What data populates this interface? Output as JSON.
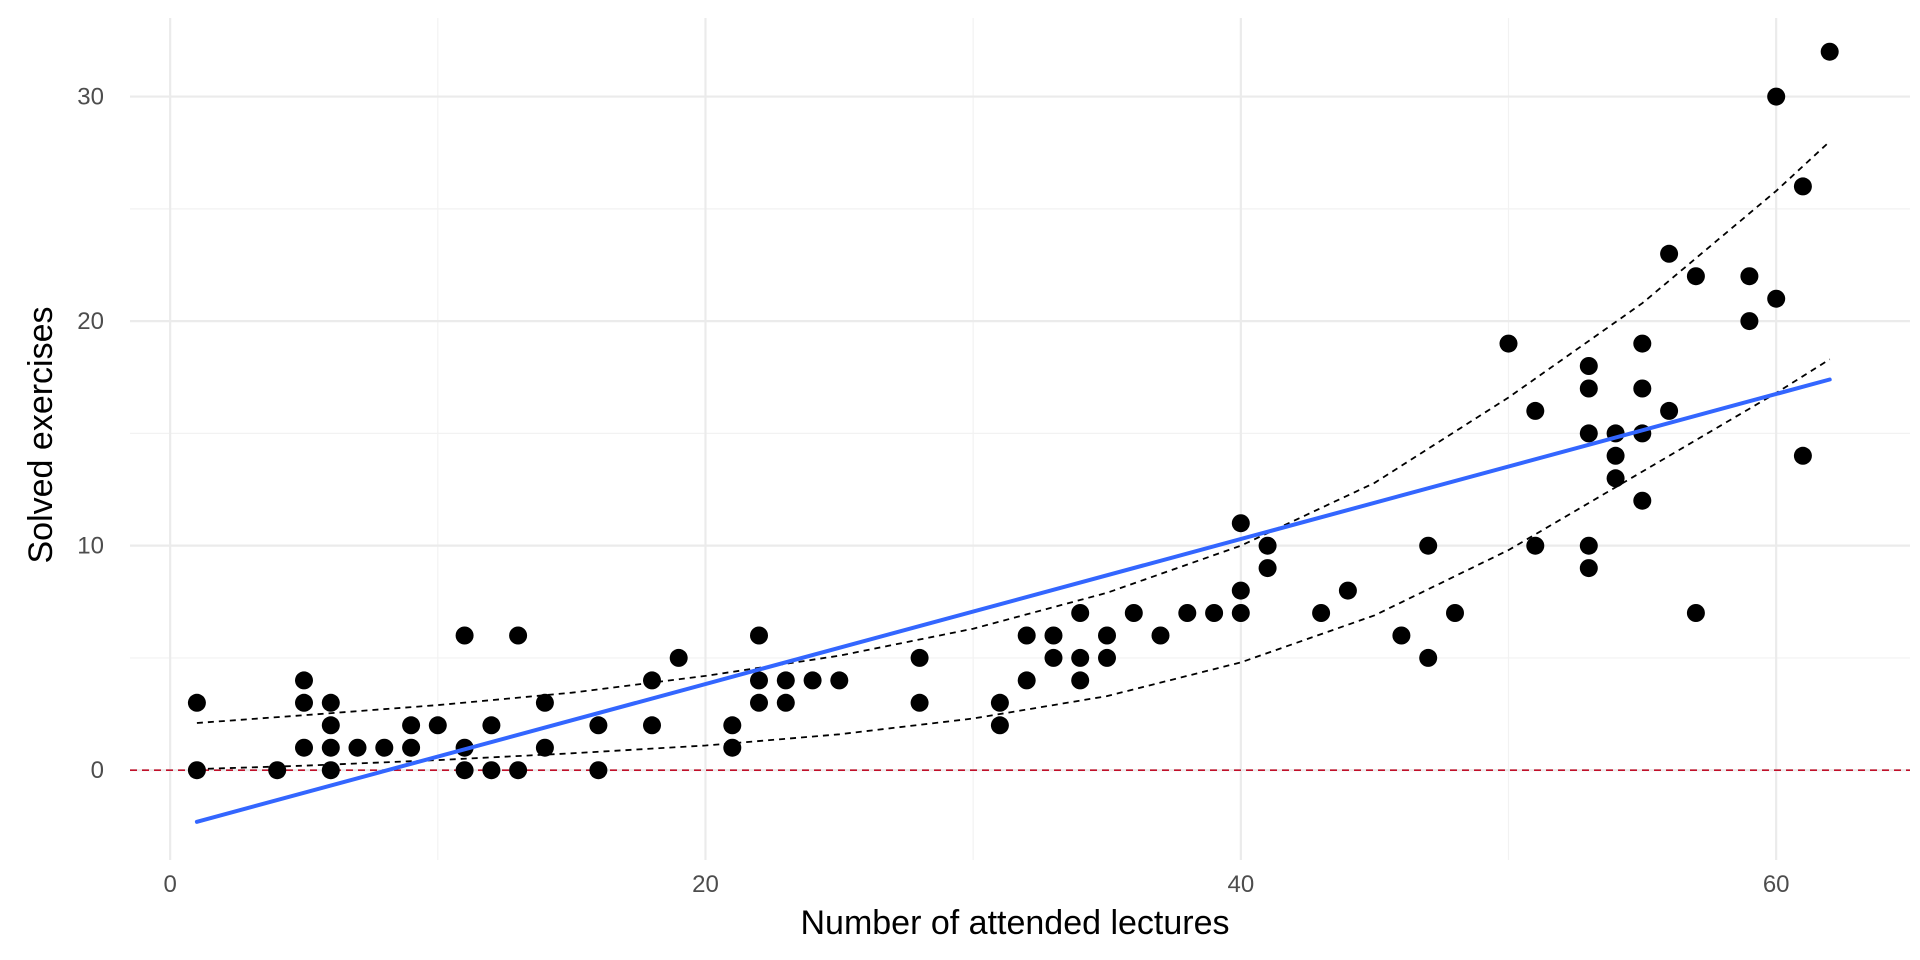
{
  "chart_data": {
    "type": "scatter",
    "title": "",
    "xlabel": "Number of attended lectures",
    "ylabel": "Solved exercises",
    "xlim": [
      -1.5,
      65
    ],
    "ylim": [
      -4,
      33.5
    ],
    "x_ticks": [
      0,
      20,
      40,
      60
    ],
    "x_tick_labels": [
      "0",
      "20",
      "40",
      "60"
    ],
    "x_minor_ticks": [
      10,
      30,
      50
    ],
    "y_ticks": [
      0,
      10,
      20,
      30
    ],
    "y_tick_labels": [
      "0",
      "10",
      "20",
      "30"
    ],
    "y_minor_ticks": [
      5,
      15,
      25
    ],
    "grid": true,
    "legend": "none",
    "points": {
      "x": [
        1,
        1,
        4,
        5,
        5,
        5,
        6,
        6,
        6,
        6,
        7,
        8,
        9,
        9,
        10,
        11,
        11,
        11,
        12,
        12,
        13,
        13,
        14,
        14,
        16,
        16,
        18,
        18,
        19,
        21,
        21,
        22,
        22,
        22,
        23,
        23,
        24,
        25,
        28,
        28,
        31,
        31,
        32,
        32,
        33,
        33,
        34,
        34,
        34,
        35,
        35,
        36,
        37,
        38,
        39,
        40,
        40,
        40,
        41,
        41,
        43,
        44,
        46,
        47,
        47,
        48,
        50,
        51,
        51,
        53,
        53,
        53,
        53,
        53,
        54,
        54,
        54,
        55,
        55,
        55,
        55,
        56,
        56,
        57,
        57,
        59,
        59,
        60,
        60,
        61,
        61,
        62
      ],
      "y": [
        3,
        0,
        0,
        4,
        3,
        1,
        3,
        2,
        1,
        0,
        1,
        1,
        2,
        1,
        2,
        6,
        1,
        0,
        2,
        0,
        6,
        0,
        3,
        1,
        2,
        0,
        4,
        2,
        5,
        2,
        1,
        6,
        4,
        3,
        4,
        3,
        4,
        4,
        5,
        3,
        3,
        2,
        6,
        4,
        6,
        5,
        7,
        5,
        4,
        6,
        5,
        7,
        6,
        7,
        7,
        11,
        8,
        7,
        10,
        9,
        7,
        8,
        6,
        10,
        5,
        7,
        19,
        16,
        10,
        18,
        17,
        15,
        10,
        9,
        15,
        14,
        13,
        19,
        17,
        15,
        12,
        23,
        16,
        22,
        7,
        22,
        20,
        30,
        21,
        26,
        14,
        32
      ],
      "color": "#000000"
    },
    "linear_fit": {
      "x": [
        1,
        62
      ],
      "y": [
        -2.3,
        17.4
      ],
      "color": "#3366FF"
    },
    "upper_curve": {
      "x": [
        1,
        5,
        10,
        15,
        20,
        25,
        30,
        35,
        40,
        45,
        50,
        55,
        60,
        62
      ],
      "y": [
        2.1,
        2.45,
        2.9,
        3.45,
        4.2,
        5.1,
        6.3,
        7.9,
        10.0,
        12.8,
        16.6,
        20.8,
        25.8,
        28.0
      ],
      "color": "#000000",
      "style": "dashed"
    },
    "lower_curve": {
      "x": [
        1,
        5,
        10,
        15,
        20,
        25,
        30,
        35,
        40,
        45,
        50,
        55,
        60,
        62
      ],
      "y": [
        0.05,
        0.2,
        0.45,
        0.75,
        1.1,
        1.6,
        2.3,
        3.3,
        4.8,
        6.9,
        9.8,
        13.3,
        16.8,
        18.3
      ],
      "color": "#000000",
      "style": "dashed"
    },
    "reference_line": {
      "y": 0,
      "color": "#C0102A",
      "style": "dashed"
    }
  }
}
